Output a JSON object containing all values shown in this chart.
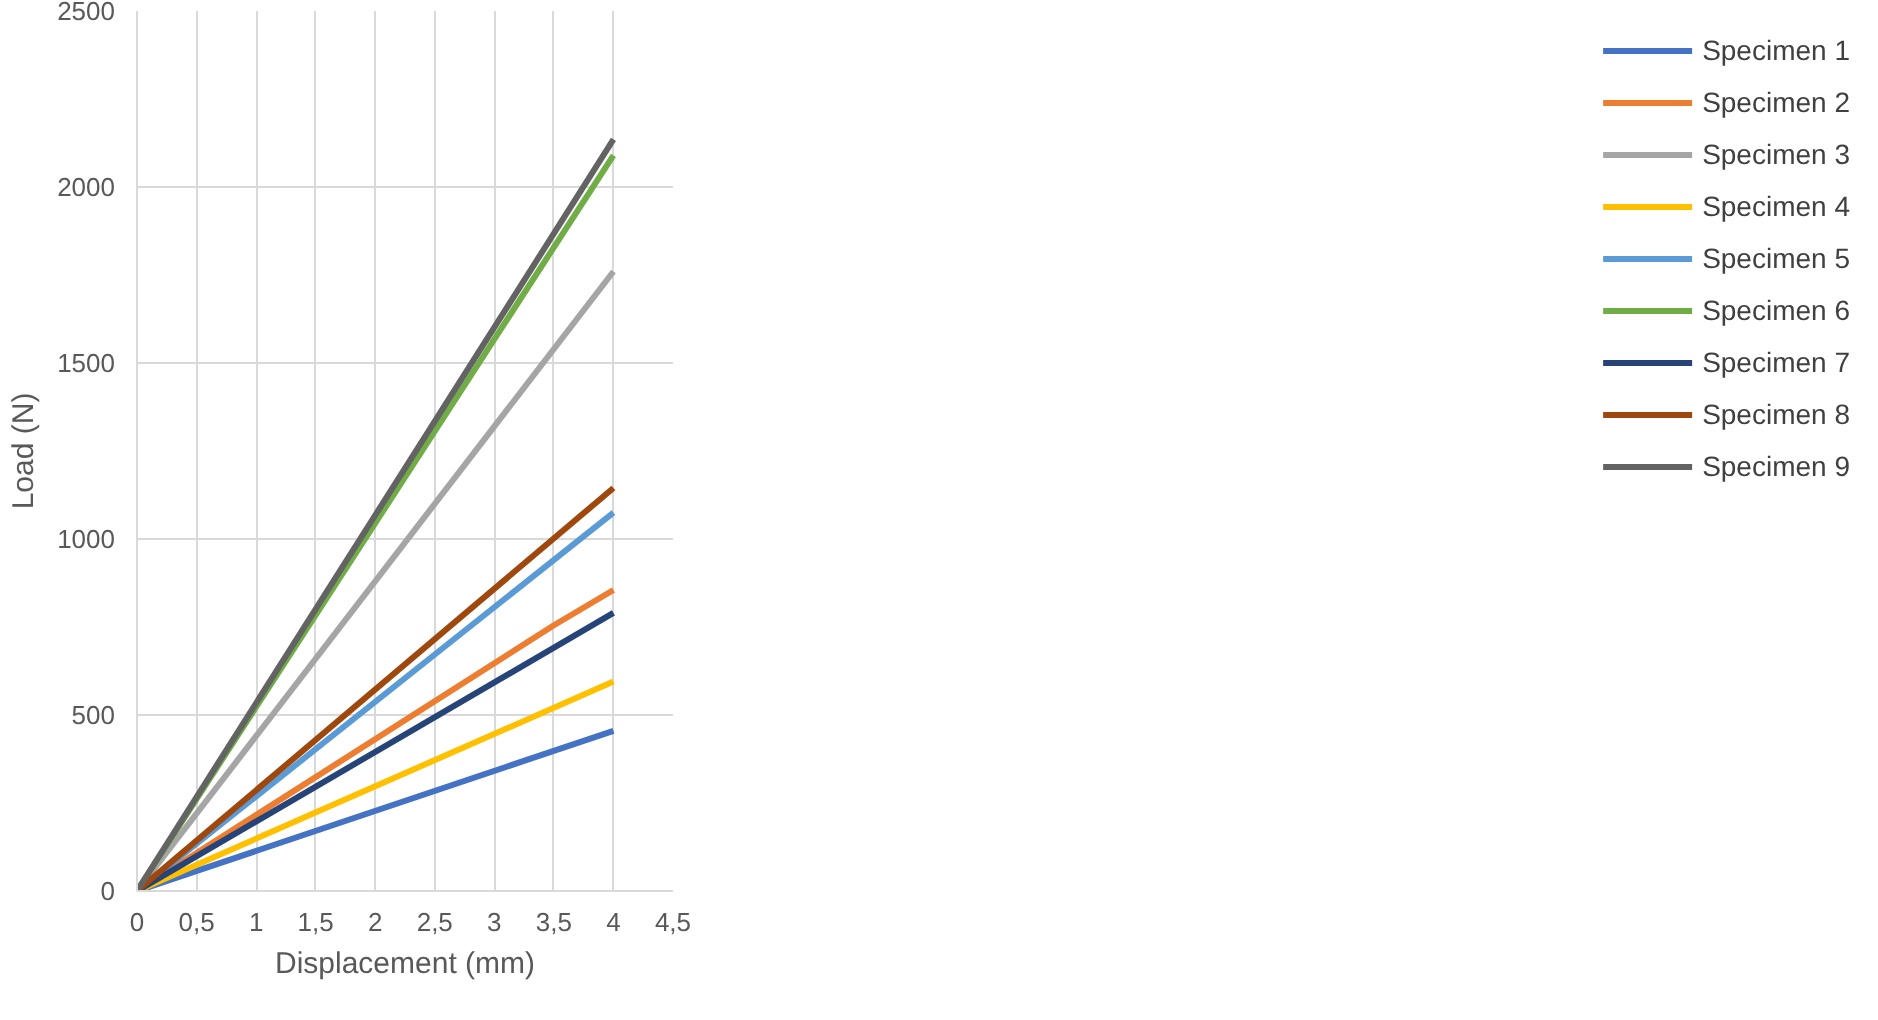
{
  "chart_data": {
    "type": "line",
    "xlabel": "Displacement (mm)",
    "ylabel": "Load (N)",
    "xlim": [
      0,
      4.5
    ],
    "ylim": [
      0,
      2500
    ],
    "xticks": [
      0,
      {
        "value": 0.5,
        "label": "0,5"
      },
      1,
      {
        "value": 1.5,
        "label": "1,5"
      },
      2,
      {
        "value": 2.5,
        "label": "2,5"
      },
      3,
      {
        "value": 3.5,
        "label": "3,5"
      },
      4,
      {
        "value": 4.5,
        "label": "4,5"
      }
    ],
    "yticks": [
      0,
      500,
      1000,
      1500,
      2000,
      2500
    ],
    "grid": true,
    "legend": "right",
    "marker": "none",
    "line_style": "solid",
    "series": [
      {
        "name": "Specimen 1",
        "color": "#4472c4",
        "x": [
          0,
          4
        ],
        "values": [
          0,
          455
        ]
      },
      {
        "name": "Specimen 2",
        "color": "#ed7d31",
        "x": [
          0,
          3.5,
          4
        ],
        "values": [
          0,
          755,
          855
        ]
      },
      {
        "name": "Specimen 3",
        "color": "#a5a5a5",
        "x": [
          0,
          4
        ],
        "values": [
          0,
          1760
        ]
      },
      {
        "name": "Specimen 4",
        "color": "#ffc000",
        "x": [
          0,
          4
        ],
        "values": [
          0,
          595
        ]
      },
      {
        "name": "Specimen 5",
        "color": "#5b9bd5",
        "x": [
          0,
          4
        ],
        "values": [
          0,
          1075
        ]
      },
      {
        "name": "Specimen 6",
        "color": "#70ad47",
        "x": [
          0,
          4
        ],
        "values": [
          0,
          2090
        ]
      },
      {
        "name": "Specimen 7",
        "color": "#264478",
        "x": [
          0,
          4
        ],
        "values": [
          0,
          790
        ]
      },
      {
        "name": "Specimen 8",
        "color": "#9e480e",
        "x": [
          0,
          4
        ],
        "values": [
          0,
          1145
        ]
      },
      {
        "name": "Specimen 9",
        "color": "#636363",
        "x": [
          0,
          4
        ],
        "values": [
          0,
          2135
        ]
      }
    ]
  }
}
